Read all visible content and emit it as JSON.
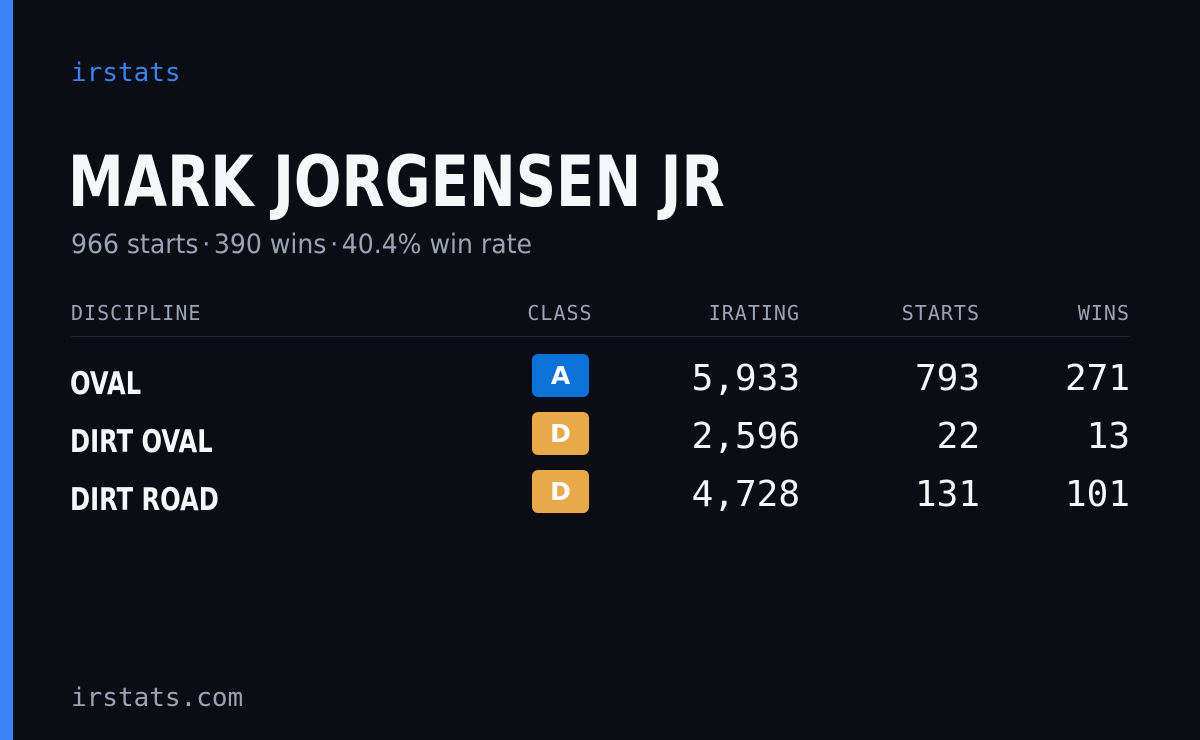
{
  "colors": {
    "accent": "#3b82f6",
    "background": "#0a0d14",
    "class_A": "#0b72d9",
    "class_D": "#e8a94b"
  },
  "brand": "irstats",
  "driver": {
    "name": "MARK JORGENSEN JR",
    "starts_text": "966 starts",
    "wins_text": "390 wins",
    "win_rate_text": "40.4% win rate",
    "separator": "·"
  },
  "table": {
    "headers": {
      "discipline": "DISCIPLINE",
      "class": "CLASS",
      "irating": "IRATING",
      "starts": "STARTS",
      "wins": "WINS"
    },
    "rows": [
      {
        "discipline": "OVAL",
        "class": "A",
        "class_color": "#0b72d9",
        "irating": "5,933",
        "starts": "793",
        "wins": "271"
      },
      {
        "discipline": "DIRT OVAL",
        "class": "D",
        "class_color": "#e8a94b",
        "irating": "2,596",
        "starts": "22",
        "wins": "13"
      },
      {
        "discipline": "DIRT ROAD",
        "class": "D",
        "class_color": "#e8a94b",
        "irating": "4,728",
        "starts": "131",
        "wins": "101"
      }
    ]
  },
  "footer": {
    "domain": "irstats.com"
  }
}
